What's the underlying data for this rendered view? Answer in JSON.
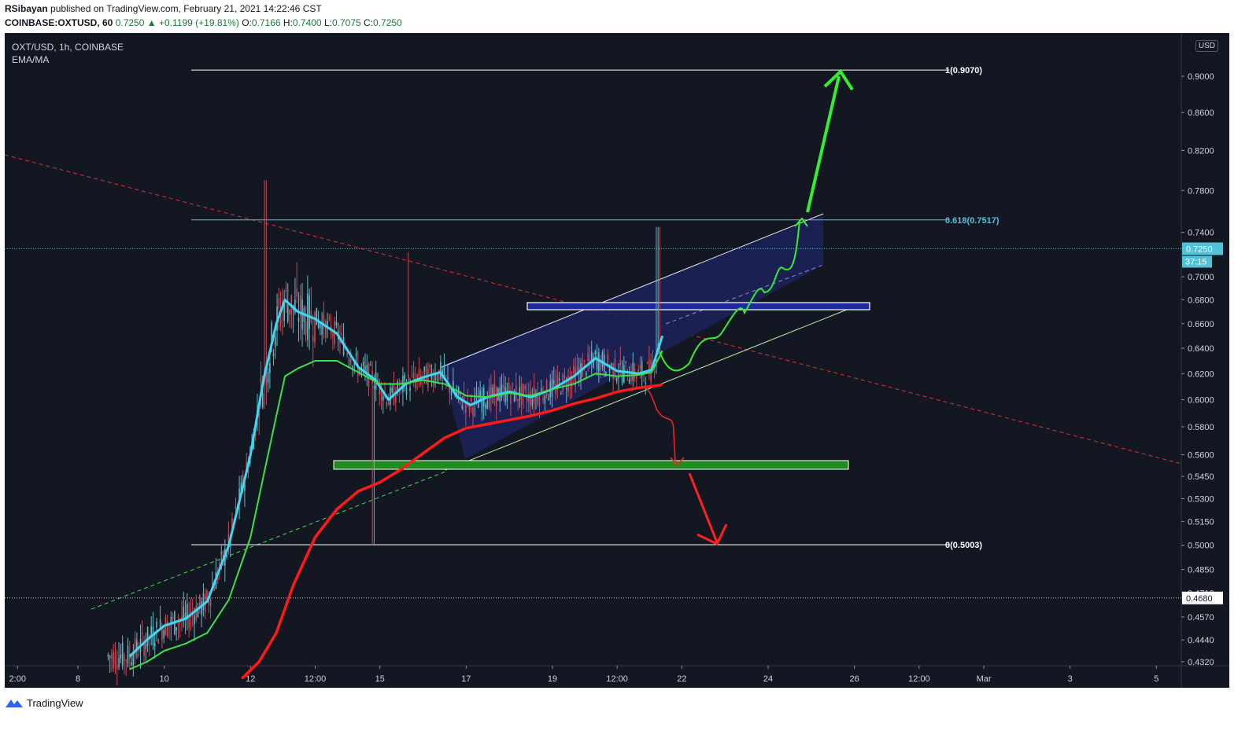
{
  "header": {
    "author": "RSibayan",
    "published_text": "published on TradingView.com, February 21, 2021 14:22:46 CST",
    "symbol": "COINBASE:OXTUSD, 60",
    "change_value": "+0.1199 (+19.81%)",
    "change_arrow": "▲",
    "open_label": "O:",
    "open": "0.7166",
    "high_label": "H:",
    "high": "0.7400",
    "low_label": "L:",
    "low": "0.7075",
    "close_label": "C:",
    "close": "0.7250",
    "first_value": "0.7250"
  },
  "legend": {
    "line1": "OXT/USD, 1h, COINBASE",
    "line2": "EMA/MA"
  },
  "currency_badge": "USD",
  "footer": {
    "brand": "TradingView"
  },
  "colors": {
    "background": "#131722",
    "grid": "#1e2230",
    "cyan_ema": "#3fd8f2",
    "green_ema": "#3ee04a",
    "red_ma": "#ff1a1a",
    "fib": "#ffffff",
    "fib_618": "#4fc3d9",
    "channel_fill": "#1c2259",
    "zone_green": "#1e8c1e",
    "arrow_green": "#33ee33",
    "arrow_red": "#ff2020",
    "candle_up": "#5fb9c9",
    "candle_down": "#c44a56"
  },
  "chart_data": {
    "type": "candlestick",
    "title": "OXT/USD, 1h, COINBASE",
    "ylim": [
      0.427,
      1.0
    ],
    "y_scale": "log",
    "price_ticks": [
      "0.9000",
      "0.8600",
      "0.8200",
      "0.7800",
      "0.7400",
      "0.7000",
      "0.6800",
      "0.6600",
      "0.6400",
      "0.6200",
      "0.6000",
      "0.5800",
      "0.5600",
      "0.5450",
      "0.5300",
      "0.5150",
      "0.5000",
      "0.4850",
      "0.4710",
      "0.4570",
      "0.4440",
      "0.4320"
    ],
    "time_labels": [
      {
        "label": "2:00",
        "day": 6.6
      },
      {
        "label": "8",
        "day": 8
      },
      {
        "label": "10",
        "day": 10
      },
      {
        "label": "12",
        "day": 12
      },
      {
        "label": "12:00",
        "day": 13.5
      },
      {
        "label": "15",
        "day": 15
      },
      {
        "label": "17",
        "day": 17
      },
      {
        "label": "19",
        "day": 19
      },
      {
        "label": "12:00",
        "day": 20.5
      },
      {
        "label": "22",
        "day": 22
      },
      {
        "label": "24",
        "day": 24
      },
      {
        "label": "26",
        "day": 26
      },
      {
        "label": "12:00",
        "day": 27.5
      },
      {
        "label": "Mar",
        "day": 29
      },
      {
        "label": "3",
        "day": 31
      },
      {
        "label": "5",
        "day": 33
      }
    ],
    "last_price": {
      "label": "0.7250",
      "value": 0.725,
      "countdown": "37:15"
    },
    "marked_level": {
      "label": "0.4680",
      "value": 0.468
    },
    "fib_levels": [
      {
        "label": "1(0.9070)",
        "value": 0.907
      },
      {
        "label": "0.618(0.7517)",
        "value": 0.7517
      },
      {
        "label": "0(0.5003)",
        "value": 0.5003
      }
    ],
    "series": [
      {
        "name": "EMA fast",
        "color": "#3fd8f2",
        "points": [
          [
            9.2,
            0.435
          ],
          [
            9.6,
            0.444
          ],
          [
            10,
            0.452
          ],
          [
            10.5,
            0.456
          ],
          [
            11,
            0.466
          ],
          [
            11.5,
            0.5
          ],
          [
            12,
            0.56
          ],
          [
            12.3,
            0.615
          ],
          [
            12.6,
            0.66
          ],
          [
            12.8,
            0.68
          ],
          [
            13.1,
            0.67
          ],
          [
            13.5,
            0.664
          ],
          [
            14,
            0.652
          ],
          [
            14.5,
            0.625
          ],
          [
            14.9,
            0.615
          ],
          [
            15.2,
            0.6
          ],
          [
            15.6,
            0.612
          ],
          [
            16,
            0.617
          ],
          [
            16.4,
            0.621
          ],
          [
            16.8,
            0.602
          ],
          [
            17.1,
            0.596
          ],
          [
            17.5,
            0.602
          ],
          [
            18,
            0.606
          ],
          [
            18.5,
            0.602
          ],
          [
            19,
            0.608
          ],
          [
            19.5,
            0.618
          ],
          [
            20,
            0.632
          ],
          [
            20.5,
            0.622
          ],
          [
            21,
            0.62
          ],
          [
            21.3,
            0.623
          ],
          [
            21.55,
            0.65
          ]
        ]
      },
      {
        "name": "EMA slow",
        "color": "#3ee04a",
        "points": [
          [
            9.2,
            0.428
          ],
          [
            9.6,
            0.432
          ],
          [
            10,
            0.438
          ],
          [
            10.5,
            0.442
          ],
          [
            11,
            0.448
          ],
          [
            11.5,
            0.467
          ],
          [
            12,
            0.505
          ],
          [
            12.3,
            0.545
          ],
          [
            12.6,
            0.588
          ],
          [
            12.8,
            0.618
          ],
          [
            13.1,
            0.624
          ],
          [
            13.5,
            0.63
          ],
          [
            14,
            0.63
          ],
          [
            14.5,
            0.621
          ],
          [
            15,
            0.612
          ],
          [
            15.5,
            0.612
          ],
          [
            16,
            0.615
          ],
          [
            16.5,
            0.612
          ],
          [
            17,
            0.603
          ],
          [
            17.5,
            0.602
          ],
          [
            18,
            0.605
          ],
          [
            18.5,
            0.603
          ],
          [
            19,
            0.608
          ],
          [
            19.5,
            0.612
          ],
          [
            20,
            0.62
          ],
          [
            20.5,
            0.618
          ],
          [
            21,
            0.619
          ],
          [
            21.3,
            0.621
          ],
          [
            21.55,
            0.638
          ]
        ]
      },
      {
        "name": "MA",
        "color": "#ff1a1a",
        "points": [
          [
            11.8,
            0.423
          ],
          [
            12.2,
            0.432
          ],
          [
            12.6,
            0.448
          ],
          [
            13,
            0.476
          ],
          [
            13.5,
            0.505
          ],
          [
            14,
            0.523
          ],
          [
            14.5,
            0.535
          ],
          [
            15,
            0.541
          ],
          [
            15.5,
            0.55
          ],
          [
            16,
            0.561
          ],
          [
            16.5,
            0.572
          ],
          [
            17,
            0.579
          ],
          [
            17.5,
            0.582
          ],
          [
            18,
            0.585
          ],
          [
            18.5,
            0.588
          ],
          [
            19,
            0.592
          ],
          [
            19.5,
            0.597
          ],
          [
            20,
            0.601
          ],
          [
            20.5,
            0.606
          ],
          [
            21,
            0.609
          ],
          [
            21.5,
            0.611
          ],
          [
            21.55,
            0.612
          ]
        ]
      }
    ],
    "candles_summary": {
      "start_day": 8.7,
      "end_day": 21.5,
      "spike_high": 0.79,
      "spike_low": 0.5003
    }
  }
}
